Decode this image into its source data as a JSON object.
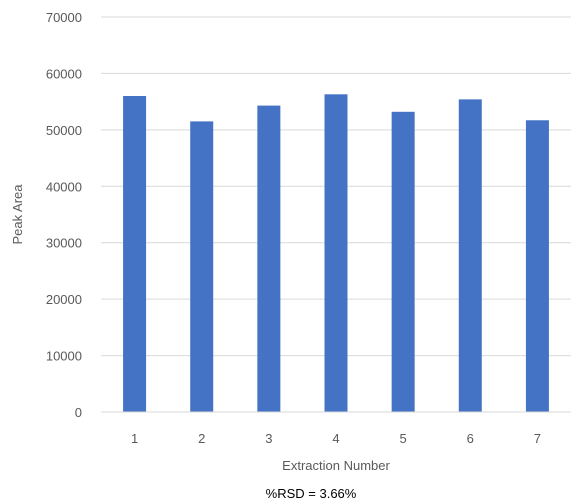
{
  "chart_data": {
    "type": "bar",
    "title": "",
    "xlabel": "Extraction Number",
    "ylabel": "Peak Area",
    "categories": [
      "1",
      "2",
      "3",
      "4",
      "5",
      "6",
      "7"
    ],
    "values": [
      56000,
      51500,
      54300,
      56300,
      53200,
      55400,
      51700
    ],
    "ylim": [
      0,
      70000
    ],
    "yticks": [
      "0",
      "10000",
      "20000",
      "30000",
      "40000",
      "50000",
      "60000",
      "70000"
    ],
    "grid": true,
    "legend": "none",
    "bar_color": "#4472C4",
    "grid_color": "#D9D9D9",
    "annotation": "%RSD = 3.66%"
  }
}
